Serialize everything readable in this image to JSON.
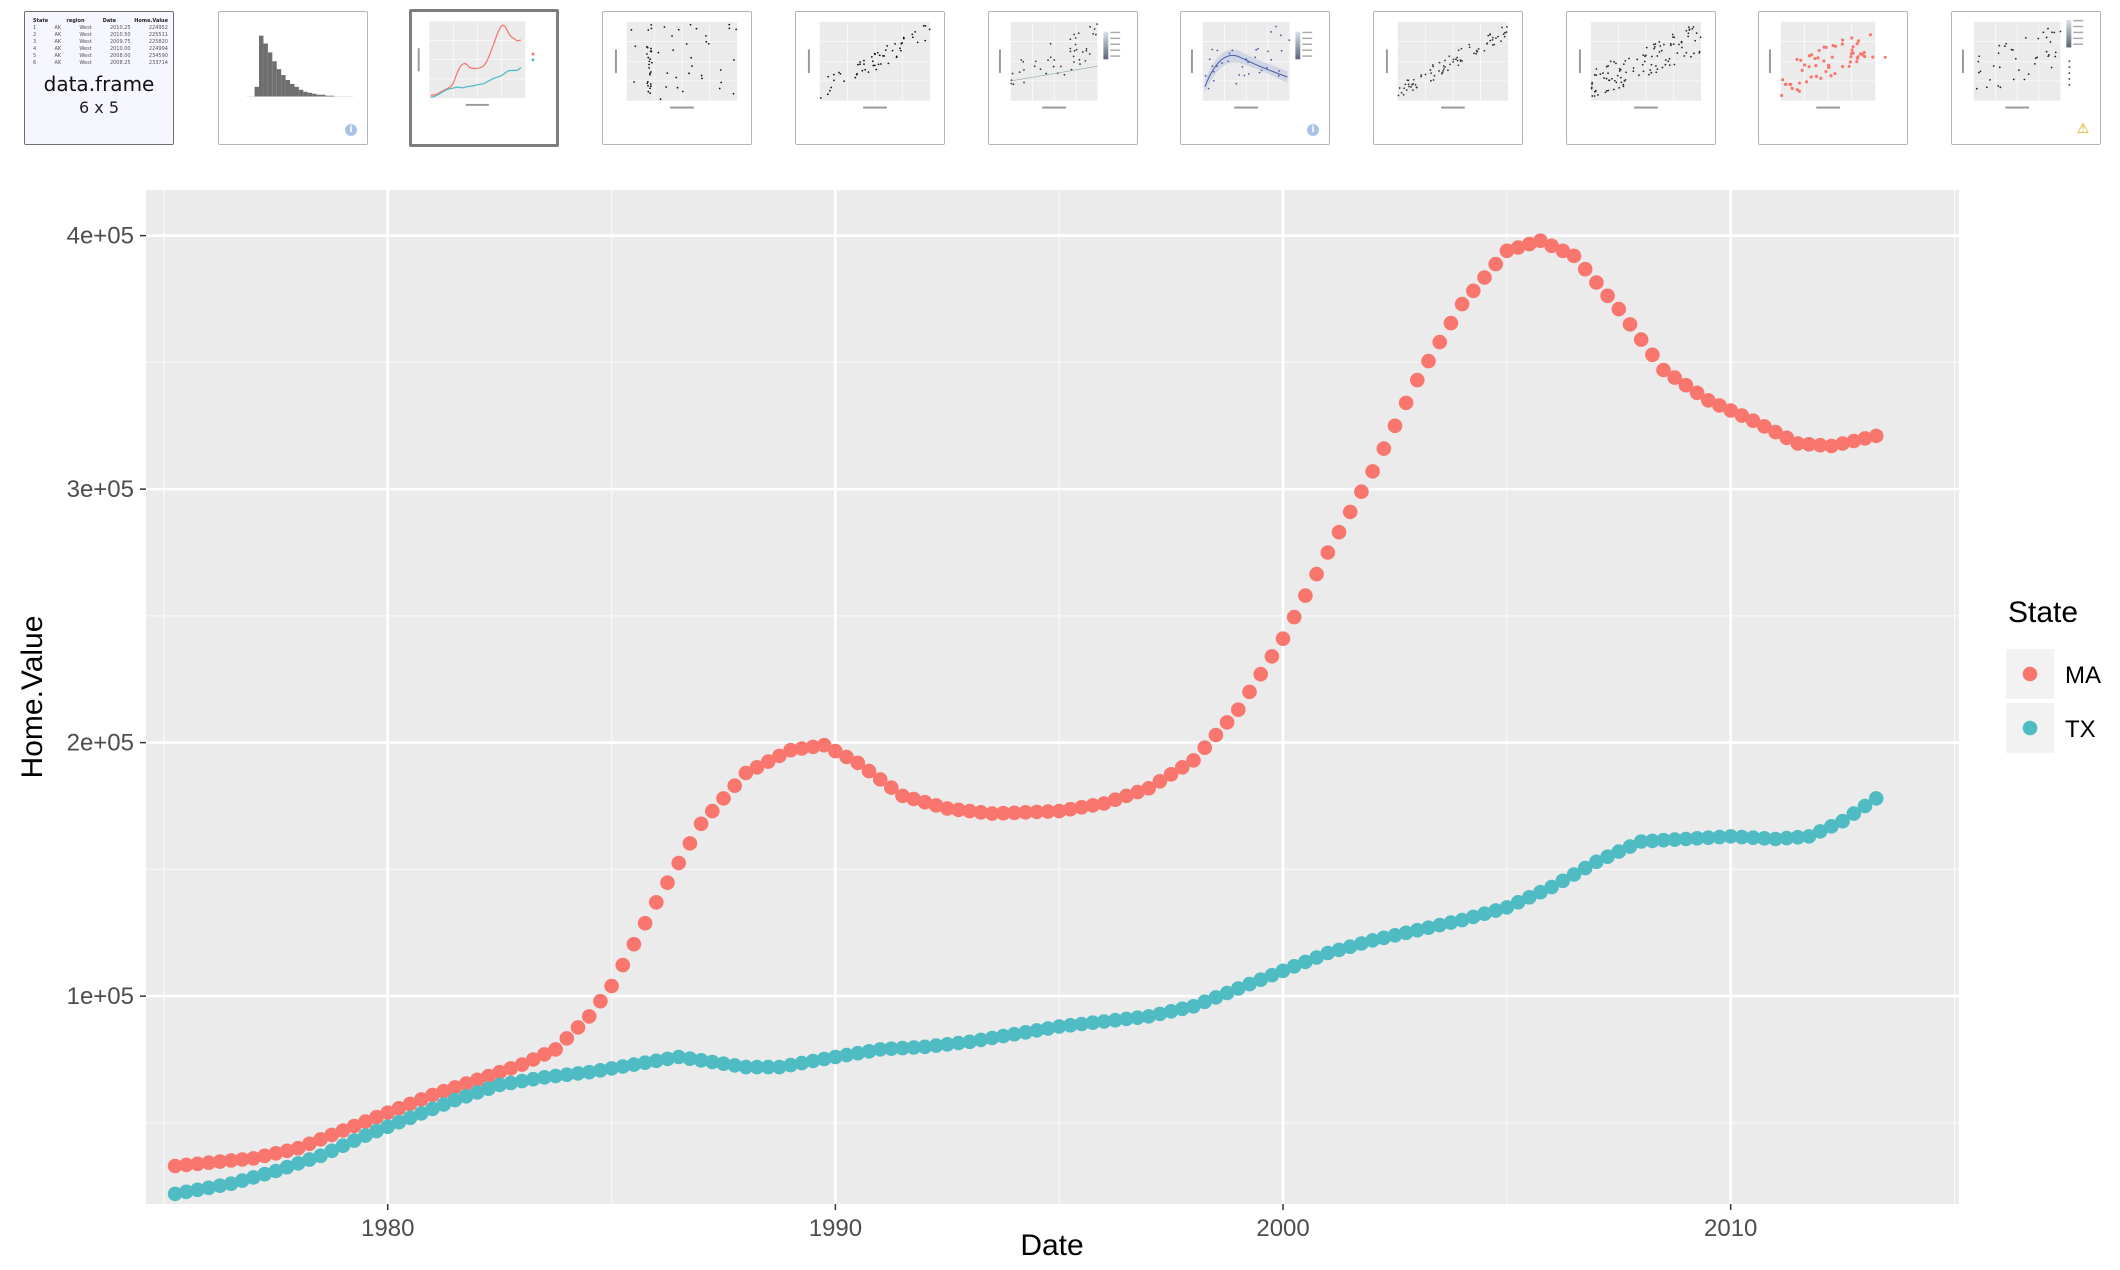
{
  "thumbnails": [
    {
      "id": "dataframe",
      "label": "data.frame",
      "dims": "6 x 5",
      "table_header": [
        "State",
        "region",
        "Date",
        "Home.Value"
      ],
      "table_rows": [
        [
          "1",
          "AK",
          "West",
          "2010.25",
          "224952"
        ],
        [
          "2",
          "AK",
          "West",
          "2010.50",
          "225511"
        ],
        [
          "3",
          "AK",
          "West",
          "2009.75",
          "225820"
        ],
        [
          "4",
          "AK",
          "West",
          "2010.00",
          "224994"
        ],
        [
          "5",
          "AK",
          "West",
          "2008.00",
          "234590"
        ],
        [
          "6",
          "AK",
          "West",
          "2008.25",
          "233714"
        ]
      ]
    },
    {
      "id": "histogram",
      "badge": "i"
    },
    {
      "id": "line-chart",
      "active": true
    },
    {
      "id": "scatter-1"
    },
    {
      "id": "scatter-2"
    },
    {
      "id": "scatter-gradient"
    },
    {
      "id": "scatter-smooth",
      "badge": "i"
    },
    {
      "id": "scatter-3"
    },
    {
      "id": "scatter-4"
    },
    {
      "id": "scatter-red"
    },
    {
      "id": "scatter-legend",
      "badge": "warning"
    }
  ],
  "colors": {
    "MA": "#F8766D",
    "TX": "#4FBBC2",
    "panel": "#EBEBEB",
    "grid": "#FFFFFF",
    "axis_text": "#4D4D4D",
    "legend_key": "#F2F2F2"
  },
  "chart_data": {
    "type": "scatter",
    "xlabel": "Date",
    "ylabel": "Home.Value",
    "xlim": [
      1974.6,
      2015.1
    ],
    "ylim": [
      18000,
      418000
    ],
    "x_ticks": [
      1980,
      1990,
      2000,
      2010
    ],
    "x_tick_labels": [
      "1980",
      "1990",
      "2000",
      "2010"
    ],
    "y_ticks": [
      100000,
      200000,
      300000,
      400000
    ],
    "y_tick_labels": [
      "1e+05",
      "2e+05",
      "3e+05",
      "4e+05"
    ],
    "grid": true,
    "legend": {
      "title": "State",
      "position": "right"
    },
    "x_range": [
      1975.25,
      2013.25
    ],
    "x_step": 0.25,
    "series": [
      {
        "name": "MA",
        "color": "#F8766D",
        "anchors": [
          [
            1975.25,
            33000
          ],
          [
            1977,
            36000
          ],
          [
            1978,
            40000
          ],
          [
            1979,
            47000
          ],
          [
            1980,
            54000
          ],
          [
            1981,
            61000
          ],
          [
            1982,
            67000
          ],
          [
            1983,
            73000
          ],
          [
            1983.75,
            79000
          ],
          [
            1984.5,
            92000
          ],
          [
            1985,
            104000
          ],
          [
            1986,
            137000
          ],
          [
            1987,
            168000
          ],
          [
            1988,
            188000
          ],
          [
            1989,
            197000
          ],
          [
            1989.75,
            199000
          ],
          [
            1990.5,
            192000
          ],
          [
            1991.5,
            179000
          ],
          [
            1992.5,
            174000
          ],
          [
            1993.5,
            172000
          ],
          [
            1995,
            173000
          ],
          [
            1996,
            176000
          ],
          [
            1997,
            182000
          ],
          [
            1998,
            193000
          ],
          [
            1999,
            213000
          ],
          [
            2000,
            241000
          ],
          [
            2001,
            275000
          ],
          [
            2002,
            307000
          ],
          [
            2003,
            343000
          ],
          [
            2004,
            373000
          ],
          [
            2005,
            394000
          ],
          [
            2005.75,
            398000
          ],
          [
            2006.5,
            392000
          ],
          [
            2007.5,
            371000
          ],
          [
            2008.5,
            347000
          ],
          [
            2009.5,
            335000
          ],
          [
            2010.5,
            327000
          ],
          [
            2011.5,
            318000
          ],
          [
            2012.25,
            317000
          ],
          [
            2013.25,
            321000
          ]
        ]
      },
      {
        "name": "TX",
        "color": "#4FBBC2",
        "anchors": [
          [
            1975.25,
            22000
          ],
          [
            1976.5,
            26000
          ],
          [
            1977.5,
            31000
          ],
          [
            1978.5,
            37000
          ],
          [
            1979.5,
            45000
          ],
          [
            1980.5,
            52000
          ],
          [
            1981.5,
            59000
          ],
          [
            1982.5,
            65000
          ],
          [
            1983.5,
            68000
          ],
          [
            1984.5,
            70000
          ],
          [
            1985.5,
            73000
          ],
          [
            1986.5,
            76000
          ],
          [
            1987.25,
            74000
          ],
          [
            1988,
            72000
          ],
          [
            1988.75,
            72000
          ],
          [
            1990,
            76000
          ],
          [
            1991,
            79000
          ],
          [
            1992,
            80000
          ],
          [
            1993,
            82000
          ],
          [
            1994,
            85000
          ],
          [
            1995,
            88000
          ],
          [
            1996,
            90000
          ],
          [
            1997,
            92000
          ],
          [
            1998,
            96000
          ],
          [
            1999,
            103000
          ],
          [
            2000,
            110000
          ],
          [
            2001,
            117000
          ],
          [
            2002,
            122000
          ],
          [
            2003,
            126000
          ],
          [
            2004,
            130000
          ],
          [
            2005,
            135000
          ],
          [
            2006,
            143000
          ],
          [
            2007,
            153000
          ],
          [
            2008,
            161000
          ],
          [
            2009,
            162000
          ],
          [
            2010,
            163000
          ],
          [
            2011,
            162000
          ],
          [
            2011.75,
            163000
          ],
          [
            2012.5,
            169000
          ],
          [
            2013.25,
            178000
          ]
        ]
      }
    ]
  }
}
